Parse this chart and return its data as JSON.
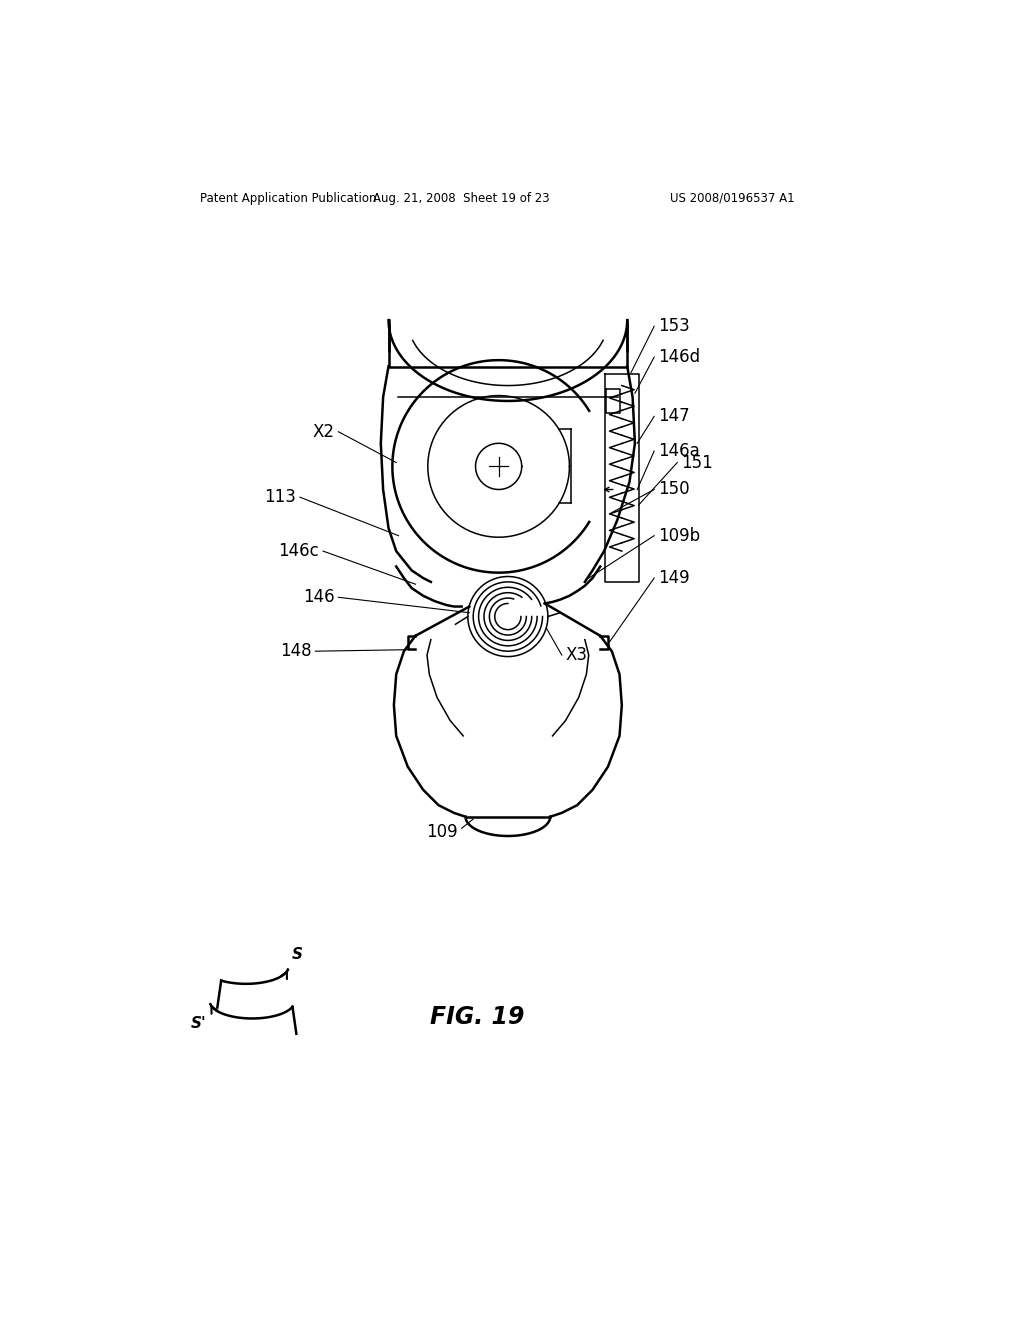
{
  "header_left": "Patent Application Publication",
  "header_center": "Aug. 21, 2008  Sheet 19 of 23",
  "header_right": "US 2008/0196537 A1",
  "figure_label": "FIG. 19",
  "bg_color": "#ffffff",
  "line_color": "#000000",
  "text_color": "#000000",
  "lw_main": 1.8,
  "lw_thin": 1.1,
  "lw_thick": 2.2
}
